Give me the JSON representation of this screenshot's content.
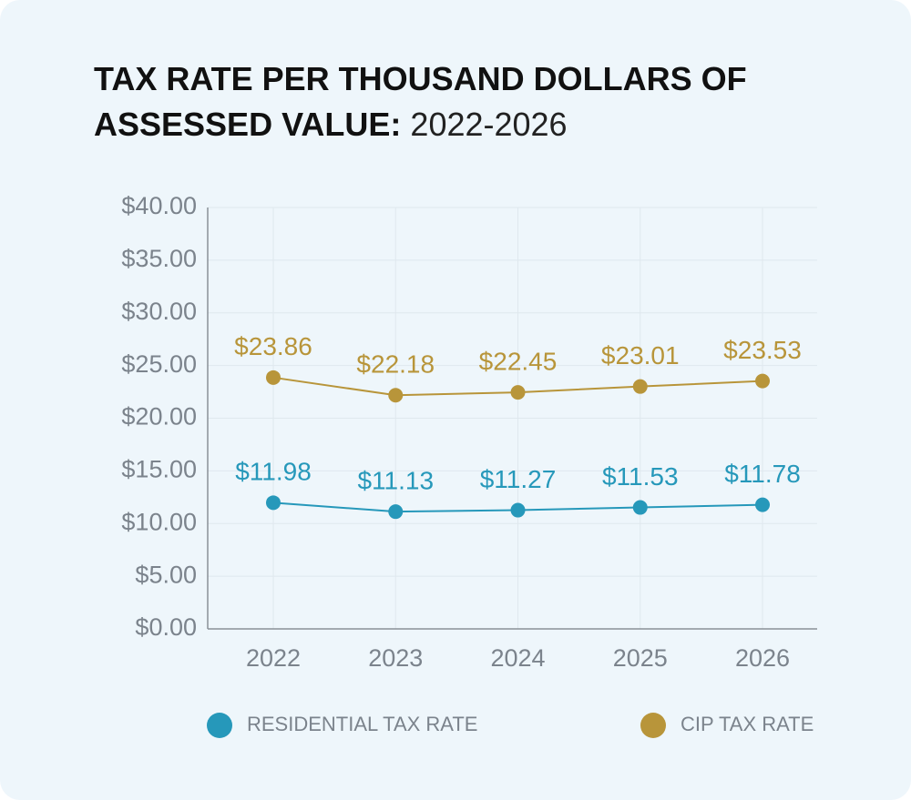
{
  "chart_data": {
    "type": "line",
    "title": "TAX RATE PER THOUSAND DOLLARS OF ASSESSED VALUE:",
    "subtitle": "2022-2026",
    "categories": [
      "2022",
      "2023",
      "2024",
      "2025",
      "2026"
    ],
    "series": [
      {
        "name": "RESIDENTIAL TAX RATE",
        "color": "#2698ba",
        "values": [
          11.98,
          11.13,
          11.27,
          11.53,
          11.78
        ],
        "value_labels": [
          "$11.98",
          "$11.13",
          "$11.27",
          "$11.53",
          "$11.78"
        ]
      },
      {
        "name": "CIP TAX RATE",
        "color": "#b8953a",
        "values": [
          23.86,
          22.18,
          22.45,
          23.01,
          23.53
        ],
        "value_labels": [
          "$23.86",
          "$22.18",
          "$22.45",
          "$23.01",
          "$23.53"
        ]
      }
    ],
    "ylim": [
      0,
      40
    ],
    "yticks": [
      {
        "value": 0,
        "label": "$0.00"
      },
      {
        "value": 5,
        "label": "$5.00"
      },
      {
        "value": 10,
        "label": "$10.00"
      },
      {
        "value": 15,
        "label": "$15.00"
      },
      {
        "value": 20,
        "label": "$20.00"
      },
      {
        "value": 25,
        "label": "$25.00"
      },
      {
        "value": 30,
        "label": "$30.00"
      },
      {
        "value": 35,
        "label": "$35.00"
      },
      {
        "value": 40,
        "label": "$40.00"
      }
    ],
    "grid": true
  }
}
